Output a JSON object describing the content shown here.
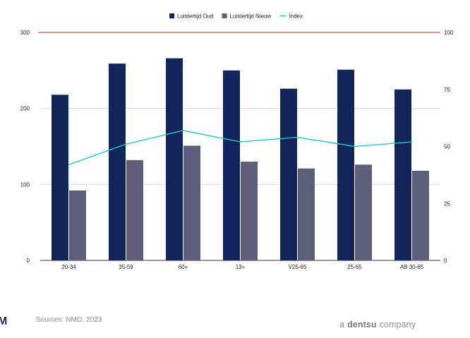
{
  "chart_data": {
    "type": "bar",
    "categories": [
      "20-34",
      "35-59",
      "60+",
      "13+",
      "V25-65",
      "25-65",
      "AB 30-65"
    ],
    "series": [
      {
        "name": "Luistertijd Oud",
        "type": "bar",
        "axis": "left",
        "color": "#13265c",
        "values": [
          218,
          259,
          266,
          250,
          226,
          251,
          225
        ]
      },
      {
        "name": "Luistertijd Nieuw",
        "type": "bar",
        "axis": "left",
        "color": "#5e5f7a",
        "values": [
          92,
          132,
          151,
          130,
          121,
          126,
          118
        ]
      },
      {
        "name": "Index",
        "type": "line",
        "axis": "right",
        "color": "#1ec8d2",
        "values": [
          42,
          51,
          57,
          52,
          54,
          50,
          52
        ]
      }
    ],
    "reference_line": {
      "axis": "right",
      "value": 100,
      "color": "#e2725b"
    },
    "y_left": {
      "min": 0,
      "max": 300,
      "ticks": [
        "0",
        "100",
        "200",
        "300"
      ]
    },
    "y_right": {
      "min": 0,
      "max": 100,
      "ticks": [
        "0",
        "25",
        "50",
        "75",
        "100"
      ]
    },
    "grid": true,
    "legend_position": "top-center"
  },
  "footer": {
    "source": "Sources: NMO, 2023",
    "brand_prefix": "a",
    "brand_name": "dentsu",
    "brand_suffix": "company",
    "corner_logo": "M"
  }
}
